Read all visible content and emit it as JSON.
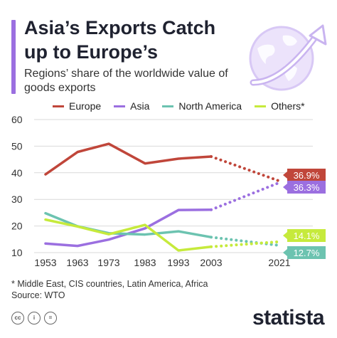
{
  "header": {
    "title": "Asia’s Exports Catch up to Europe’s",
    "subtitle": "Regions’ share of the worldwide value of goods exports",
    "icon": "globe-arrow-icon"
  },
  "colors": {
    "accent": "#9b6fe0",
    "Europe": "#c0463a",
    "Asia": "#9b6fe0",
    "North America": "#6cc3b0",
    "Others*": "#c6ea3c"
  },
  "chart_data": {
    "type": "line",
    "title": "Asia’s Exports Catch up to Europe’s",
    "subtitle": "Regions’ share of the worldwide value of goods exports",
    "x": [
      "1953",
      "1963",
      "1973",
      "1983",
      "1993",
      "2003",
      "2021"
    ],
    "ylim": [
      10,
      60
    ],
    "yticks": [
      "10",
      "20",
      "30",
      "40",
      "50",
      "60"
    ],
    "grid": true,
    "legend_position": "top",
    "dotted_segment": "2003-2021",
    "series": [
      {
        "name": "Europe",
        "values": [
          39.4,
          47.8,
          50.9,
          43.5,
          45.3,
          46.1,
          36.9
        ],
        "end_label": "36.9%"
      },
      {
        "name": "Asia",
        "values": [
          13.4,
          12.5,
          14.9,
          19.1,
          26.0,
          26.1,
          36.3
        ],
        "end_label": "36.3%"
      },
      {
        "name": "North America",
        "values": [
          24.8,
          19.9,
          17.3,
          16.8,
          18.0,
          15.8,
          12.7
        ],
        "end_label": "12.7%"
      },
      {
        "name": "Others*",
        "values": [
          22.4,
          19.8,
          16.9,
          20.4,
          10.8,
          12.2,
          14.1
        ],
        "end_label": "14.1%"
      }
    ]
  },
  "footnote": {
    "line1": "* Middle East, CIS countries, Latin America, Africa",
    "line2": "Source: WTO"
  },
  "footer": {
    "brand": "statista",
    "license_icons": [
      "cc-icon",
      "by-icon",
      "nd-icon"
    ]
  }
}
